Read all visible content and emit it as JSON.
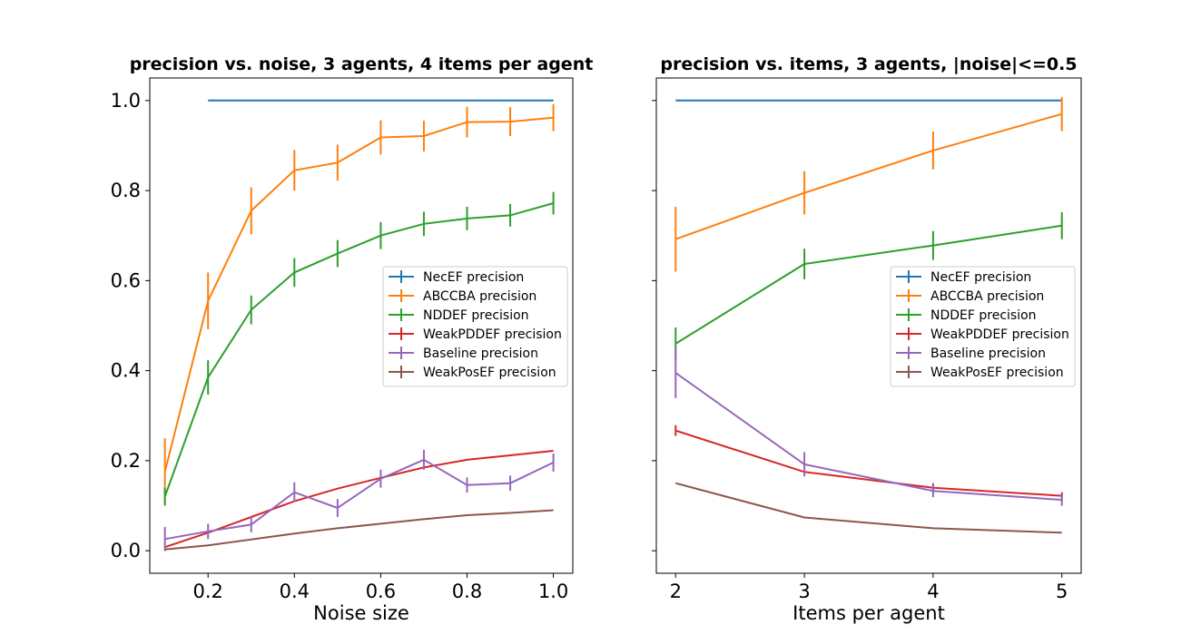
{
  "colors": [
    "#1f77b4",
    "#ff7f0e",
    "#2ca02c",
    "#d62728",
    "#9467bd",
    "#8c564b"
  ],
  "chart_data": [
    {
      "type": "line",
      "title": "precision vs. noise, 3 agents, 4 items per agent",
      "xlabel": "Noise size",
      "ylabel": "",
      "xlim": [
        0.065,
        1.045
      ],
      "ylim": [
        -0.05,
        1.05
      ],
      "xticks": [
        0.2,
        0.4,
        0.6,
        0.8,
        1.0
      ],
      "xtick_labels": [
        "0.2",
        "0.4",
        "0.6",
        "0.8",
        "1.0"
      ],
      "yticks": [
        0.0,
        0.2,
        0.4,
        0.6,
        0.8,
        1.0
      ],
      "ytick_labels": [
        "0.0",
        "0.2",
        "0.4",
        "0.6",
        "0.8",
        "1.0"
      ],
      "legend_position": "center-right",
      "series": [
        {
          "name": "NecEF precision",
          "x": [
            0.2,
            0.3,
            0.4,
            0.5,
            0.6,
            0.7,
            0.8,
            0.9,
            1.0
          ],
          "y": [
            1.0,
            1.0,
            1.0,
            1.0,
            1.0,
            1.0,
            1.0,
            1.0,
            1.0
          ],
          "err": [
            0,
            0,
            0,
            0,
            0,
            0,
            0,
            0,
            0
          ]
        },
        {
          "name": "ABCCBA precision",
          "x": [
            0.1,
            0.2,
            0.3,
            0.4,
            0.5,
            0.6,
            0.7,
            0.8,
            0.9,
            1.0
          ],
          "y": [
            0.175,
            0.555,
            0.755,
            0.845,
            0.862,
            0.918,
            0.921,
            0.952,
            0.953,
            0.962
          ],
          "err": [
            0.075,
            0.063,
            0.052,
            0.045,
            0.04,
            0.038,
            0.034,
            0.034,
            0.032,
            0.03
          ]
        },
        {
          "name": "NDDEF precision",
          "x": [
            0.1,
            0.2,
            0.3,
            0.4,
            0.5,
            0.6,
            0.7,
            0.8,
            0.9,
            1.0
          ],
          "y": [
            0.12,
            0.385,
            0.535,
            0.618,
            0.66,
            0.7,
            0.726,
            0.738,
            0.745,
            0.772
          ],
          "err": [
            0.02,
            0.038,
            0.032,
            0.032,
            0.03,
            0.03,
            0.027,
            0.026,
            0.025,
            0.025
          ]
        },
        {
          "name": "WeakPDDEF precision",
          "x": [
            0.1,
            0.2,
            0.3,
            0.4,
            0.5,
            0.6,
            0.7,
            0.8,
            0.9,
            1.0
          ],
          "y": [
            0.008,
            0.04,
            0.075,
            0.11,
            0.138,
            0.162,
            0.185,
            0.202,
            0.212,
            0.222
          ],
          "err": [
            0,
            0,
            0,
            0,
            0,
            0,
            0,
            0,
            0,
            0
          ]
        },
        {
          "name": "Baseline precision",
          "x": [
            0.1,
            0.2,
            0.3,
            0.4,
            0.5,
            0.6,
            0.7,
            0.8,
            0.9,
            1.0
          ],
          "y": [
            0.026,
            0.043,
            0.058,
            0.13,
            0.095,
            0.16,
            0.202,
            0.146,
            0.15,
            0.196
          ],
          "err": [
            0.027,
            0.017,
            0.017,
            0.022,
            0.02,
            0.02,
            0.022,
            0.017,
            0.017,
            0.02
          ]
        },
        {
          "name": "WeakPosEF precision",
          "x": [
            0.1,
            0.2,
            0.3,
            0.4,
            0.5,
            0.6,
            0.7,
            0.8,
            0.9,
            1.0
          ],
          "y": [
            0.003,
            0.012,
            0.025,
            0.038,
            0.05,
            0.06,
            0.07,
            0.079,
            0.084,
            0.09
          ],
          "err": [
            0,
            0,
            0,
            0,
            0,
            0,
            0,
            0,
            0,
            0
          ]
        }
      ]
    },
    {
      "type": "line",
      "title": "precision vs. items, 3 agents, |noise|<=0.5",
      "xlabel": "Items per agent",
      "ylabel": "",
      "xlim": [
        1.85,
        5.15
      ],
      "ylim": [
        -0.05,
        1.05
      ],
      "xticks": [
        2,
        3,
        4,
        5
      ],
      "xtick_labels": [
        "2",
        "3",
        "4",
        "5"
      ],
      "yticks": [
        0.0,
        0.2,
        0.4,
        0.6,
        0.8,
        1.0
      ],
      "ytick_labels": [],
      "legend_position": "center-right",
      "series": [
        {
          "name": "NecEF precision",
          "x": [
            2,
            3,
            4,
            5
          ],
          "y": [
            1.0,
            1.0,
            1.0,
            1.0
          ],
          "err": [
            0,
            0,
            0,
            0
          ]
        },
        {
          "name": "ABCCBA precision",
          "x": [
            2,
            3,
            4,
            5
          ],
          "y": [
            0.692,
            0.795,
            0.889,
            0.97
          ],
          "err": [
            0.072,
            0.048,
            0.042,
            0.038
          ]
        },
        {
          "name": "NDDEF precision",
          "x": [
            2,
            3,
            4,
            5
          ],
          "y": [
            0.46,
            0.637,
            0.678,
            0.722
          ],
          "err": [
            0.036,
            0.034,
            0.032,
            0.03
          ]
        },
        {
          "name": "WeakPDDEF precision",
          "x": [
            2,
            3,
            4,
            5
          ],
          "y": [
            0.267,
            0.175,
            0.14,
            0.122
          ],
          "err": [
            0.012,
            0,
            0.01,
            0.008
          ]
        },
        {
          "name": "Baseline precision",
          "x": [
            2,
            3,
            4,
            5
          ],
          "y": [
            0.395,
            0.192,
            0.133,
            0.113
          ],
          "err": [
            0.056,
            0.027,
            0.014,
            0.013
          ]
        },
        {
          "name": "WeakPosEF precision",
          "x": [
            2,
            3,
            4,
            5
          ],
          "y": [
            0.15,
            0.074,
            0.05,
            0.04
          ],
          "err": [
            0,
            0,
            0,
            0
          ]
        }
      ]
    }
  ]
}
